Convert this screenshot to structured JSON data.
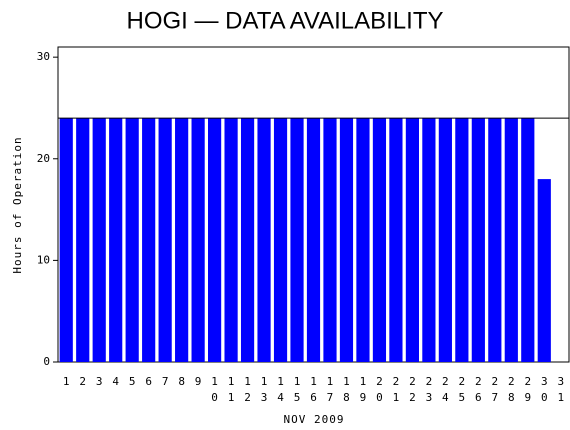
{
  "chart_data": {
    "type": "bar",
    "title": "HOGI — DATA AVAILABILITY",
    "y_label": "Hours of Operation",
    "x_label": "NOV 2009",
    "categories": [
      "1",
      "2",
      "3",
      "4",
      "5",
      "6",
      "7",
      "8",
      "9",
      "10",
      "11",
      "12",
      "13",
      "14",
      "15",
      "16",
      "17",
      "18",
      "19",
      "20",
      "21",
      "22",
      "23",
      "24",
      "25",
      "26",
      "27",
      "28",
      "29",
      "30",
      "31"
    ],
    "values": [
      24,
      24,
      24,
      24,
      24,
      24,
      24,
      24,
      24,
      24,
      24,
      24,
      24,
      24,
      24,
      24,
      24,
      24,
      24,
      24,
      24,
      24,
      24,
      24,
      24,
      24,
      24,
      24,
      24,
      18,
      null
    ],
    "color": "#0000ff",
    "reference_line": 24,
    "ylim": [
      0,
      31
    ],
    "yticks": [
      0,
      10,
      20,
      30
    ]
  }
}
